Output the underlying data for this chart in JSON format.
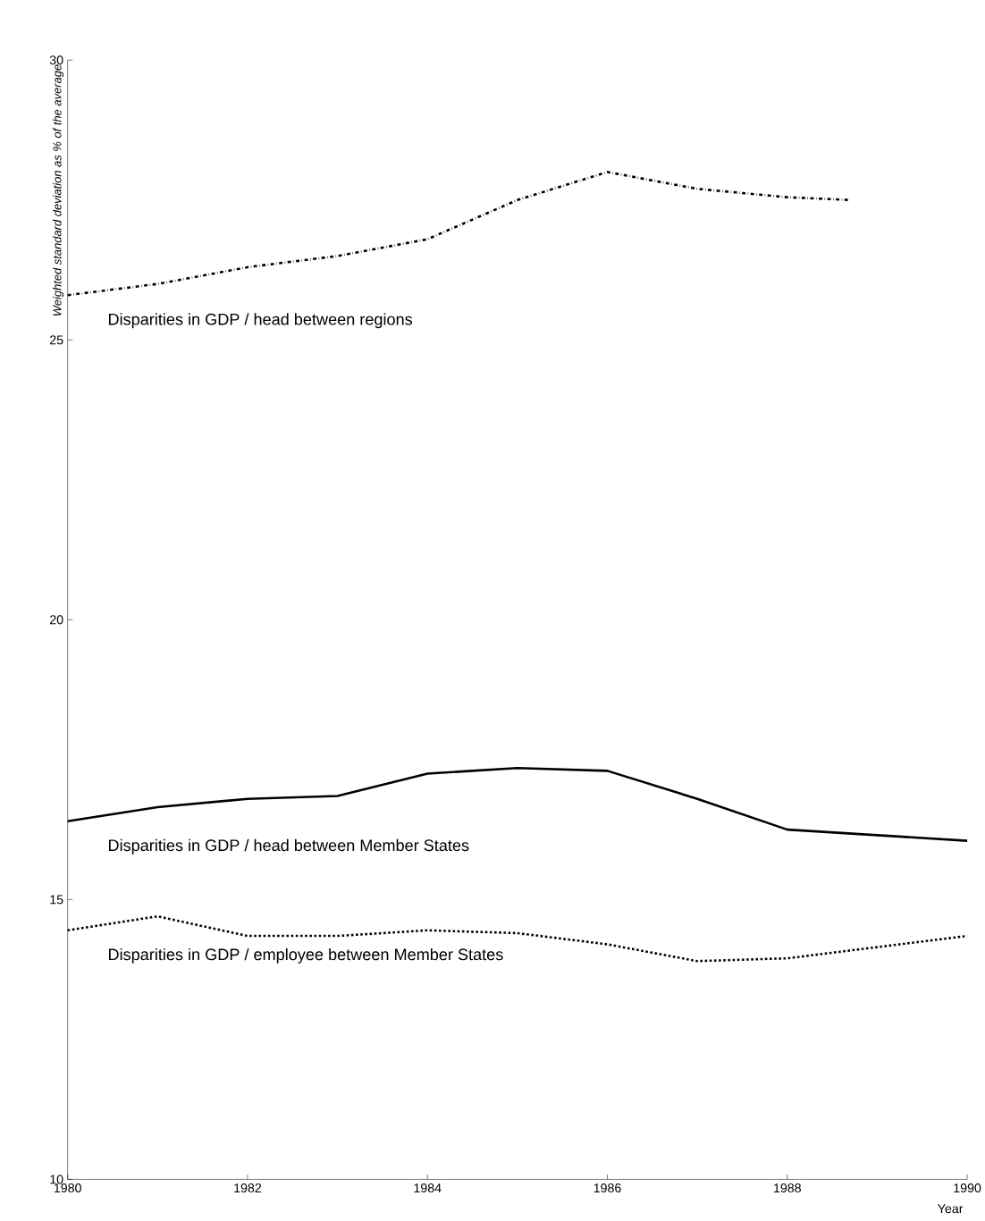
{
  "chart_data": {
    "type": "line",
    "xlabel": "Year",
    "ylabel": "Weighted standard deviation as % of the average",
    "xlim": [
      1980,
      1990
    ],
    "ylim": [
      10,
      30
    ],
    "xticks": [
      1980,
      1982,
      1984,
      1986,
      1988,
      1990
    ],
    "yticks": [
      10,
      15,
      20,
      25,
      30
    ],
    "legend": false,
    "grid": false,
    "marker": "none",
    "series": [
      {
        "name": "Disparities in GDP / head between regions",
        "color": "#000000",
        "line_style": "dashdot",
        "x": [
          1980,
          1981,
          1982,
          1983,
          1984,
          1985,
          1986,
          1987,
          1988,
          1988.7
        ],
        "values": [
          25.8,
          26.0,
          26.3,
          26.5,
          26.8,
          27.5,
          28.0,
          27.7,
          27.55,
          27.5
        ]
      },
      {
        "name": "Disparities in GDP / head between Member States",
        "color": "#000000",
        "line_style": "solid",
        "x": [
          1980,
          1981,
          1982,
          1983,
          1984,
          1985,
          1986,
          1987,
          1988,
          1989,
          1990
        ],
        "values": [
          16.4,
          16.65,
          16.8,
          16.85,
          17.25,
          17.35,
          17.3,
          16.8,
          16.25,
          16.15,
          16.05
        ]
      },
      {
        "name": "Disparities in GDP / employee between Member States",
        "color": "#000000",
        "line_style": "dotted",
        "x": [
          1980,
          1981,
          1982,
          1983,
          1984,
          1985,
          1986,
          1987,
          1988,
          1989,
          1990
        ],
        "values": [
          14.45,
          14.7,
          14.35,
          14.35,
          14.45,
          14.4,
          14.2,
          13.9,
          13.95,
          14.15,
          14.35
        ]
      }
    ]
  }
}
